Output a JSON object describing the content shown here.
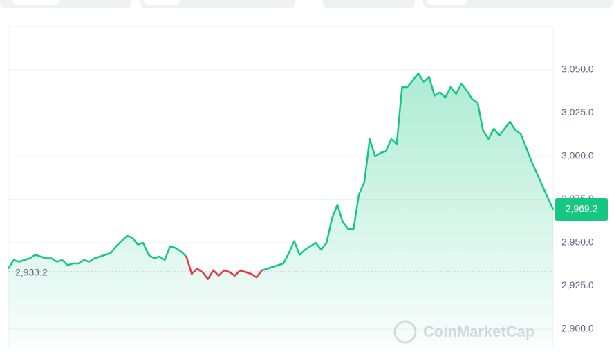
{
  "chart_data": {
    "type": "line",
    "watermark": "CoinMarketCap",
    "ylim": [
      2888.8,
      3075.2
    ],
    "yticks": [
      {
        "value": 2900,
        "label": "2,900.0"
      },
      {
        "value": 2925,
        "label": "2,925.0"
      },
      {
        "value": 2950,
        "label": "2,950.0"
      },
      {
        "value": 2975,
        "label": "2,975.0"
      },
      {
        "value": 3000,
        "label": "3,000.0"
      },
      {
        "value": 3025,
        "label": "3,025.0"
      },
      {
        "value": 3050,
        "label": "3,050.0"
      }
    ],
    "grid": true,
    "baseline": {
      "value": 2933.2,
      "label": "2,933.2"
    },
    "current_price": {
      "value": 2969.2,
      "label": "2,969.2"
    },
    "up_color": "#16c784",
    "down_color": "#ea3943",
    "series": [
      {
        "color": "#16c784",
        "values": [
          2935,
          2940,
          2939,
          2940,
          2941,
          2943,
          2942,
          2941,
          2941,
          2939,
          2940,
          2937,
          2938,
          2938,
          2940,
          2939,
          2941,
          2942,
          2943,
          2944,
          2948,
          2951,
          2954,
          2953,
          2949,
          2950,
          2943,
          2941,
          2942,
          2940,
          2948,
          2947,
          2945,
          2942,
          2932,
          2935,
          2933,
          2929,
          2934,
          2931,
          2934,
          2933,
          2931,
          2934,
          2933,
          2932,
          2930,
          2934,
          2935,
          2936,
          2937,
          2938,
          2944,
          2951,
          2943,
          2946,
          2948,
          2950,
          2946,
          2950,
          2964,
          2972,
          2962,
          2958,
          2958,
          2978,
          2985,
          3010,
          3000,
          3002,
          3003,
          3010,
          3007,
          3040,
          3040,
          3044,
          3048,
          3043,
          3046,
          3035,
          3037,
          3034,
          3040,
          3036,
          3042,
          3038,
          3033,
          3031,
          3015,
          3010,
          3016,
          3012,
          3016,
          3020,
          3015,
          3013,
          3005,
          2997,
          2990,
          2983,
          2976,
          2969.2
        ]
      }
    ]
  }
}
